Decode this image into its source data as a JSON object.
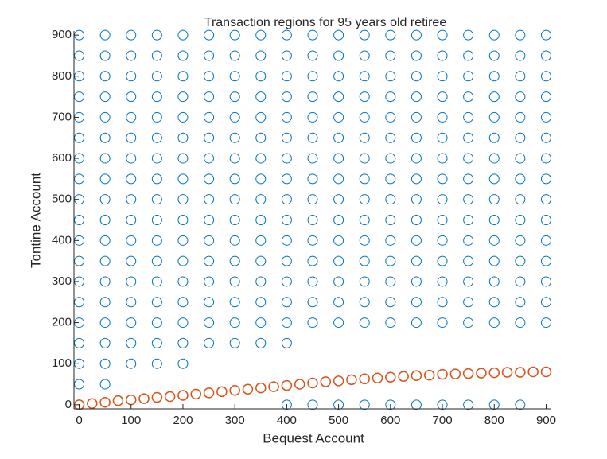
{
  "chart_data": {
    "type": "scatter",
    "title": "Transaction regions for 95 years old retiree",
    "xlabel": "Bequest Account",
    "ylabel": "Tontine Account",
    "xlim": [
      -10,
      910
    ],
    "ylim": [
      -10,
      910
    ],
    "xticks": [
      0,
      100,
      200,
      300,
      400,
      500,
      600,
      700,
      800,
      900
    ],
    "yticks": [
      0,
      100,
      200,
      300,
      400,
      500,
      600,
      700,
      800,
      900
    ],
    "series": [
      {
        "color": "#0072bd",
        "x": [
          0,
          50,
          100,
          150,
          200,
          250,
          300,
          350,
          400,
          450,
          500,
          550,
          600,
          650,
          700,
          750,
          800,
          850,
          900
        ],
        "y": [
          [
            50,
            100,
            150,
            200,
            250,
            300,
            350,
            400,
            450,
            500,
            550,
            600,
            650,
            700,
            750,
            800,
            850,
            900
          ],
          [
            50,
            100,
            150,
            200,
            250,
            300,
            350,
            400,
            450,
            500,
            550,
            600,
            650,
            700,
            750,
            800,
            850,
            900
          ],
          [
            100,
            150,
            200,
            250,
            300,
            350,
            400,
            450,
            500,
            550,
            600,
            650,
            700,
            750,
            800,
            850,
            900
          ],
          [
            100,
            150,
            200,
            250,
            300,
            350,
            400,
            450,
            500,
            550,
            600,
            650,
            700,
            750,
            800,
            850,
            900
          ],
          [
            100,
            150,
            200,
            250,
            300,
            350,
            400,
            450,
            500,
            550,
            600,
            650,
            700,
            750,
            800,
            850,
            900
          ],
          [
            150,
            200,
            250,
            300,
            350,
            400,
            450,
            500,
            550,
            600,
            650,
            700,
            750,
            800,
            850,
            900
          ],
          [
            150,
            200,
            250,
            300,
            350,
            400,
            450,
            500,
            550,
            600,
            650,
            700,
            750,
            800,
            850,
            900
          ],
          [
            150,
            200,
            250,
            300,
            350,
            400,
            450,
            500,
            550,
            600,
            650,
            700,
            750,
            800,
            850,
            900
          ],
          [
            0,
            150,
            200,
            250,
            300,
            350,
            400,
            450,
            500,
            550,
            600,
            650,
            700,
            750,
            800,
            850,
            900
          ],
          [
            0,
            200,
            250,
            300,
            350,
            400,
            450,
            500,
            550,
            600,
            650,
            700,
            750,
            800,
            850,
            900
          ],
          [
            0,
            200,
            250,
            300,
            350,
            400,
            450,
            500,
            550,
            600,
            650,
            700,
            750,
            800,
            850,
            900
          ],
          [
            0,
            200,
            250,
            300,
            350,
            400,
            450,
            500,
            550,
            600,
            650,
            700,
            750,
            800,
            850,
            900
          ],
          [
            0,
            200,
            250,
            300,
            350,
            400,
            450,
            500,
            550,
            600,
            650,
            700,
            750,
            800,
            850,
            900
          ],
          [
            0,
            200,
            250,
            300,
            350,
            400,
            450,
            500,
            550,
            600,
            650,
            700,
            750,
            800,
            850,
            900
          ],
          [
            0,
            200,
            250,
            300,
            350,
            400,
            450,
            500,
            550,
            600,
            650,
            700,
            750,
            800,
            850,
            900
          ],
          [
            0,
            200,
            250,
            300,
            350,
            400,
            450,
            500,
            550,
            600,
            650,
            700,
            750,
            800,
            850,
            900
          ],
          [
            0,
            200,
            250,
            300,
            350,
            400,
            450,
            500,
            550,
            600,
            650,
            700,
            750,
            800,
            850,
            900
          ],
          [
            0,
            200,
            250,
            300,
            350,
            400,
            450,
            500,
            550,
            600,
            650,
            700,
            750,
            800,
            850,
            900
          ],
          [
            200,
            250,
            300,
            350,
            400,
            450,
            500,
            550,
            600,
            650,
            700,
            750,
            800,
            850,
            900
          ]
        ]
      },
      {
        "color": "#d95319",
        "x": [
          0,
          25,
          50,
          75,
          100,
          125,
          150,
          175,
          200,
          225,
          250,
          275,
          300,
          325,
          350,
          375,
          400,
          425,
          450,
          475,
          500,
          525,
          550,
          575,
          600,
          625,
          650,
          675,
          700,
          725,
          750,
          775,
          800,
          825,
          850,
          875,
          900
        ],
        "y": [
          0,
          3,
          6,
          10,
          12,
          15,
          18,
          20,
          23,
          26,
          29,
          32,
          35,
          38,
          41,
          44,
          47,
          50,
          53,
          56,
          58,
          61,
          63,
          65,
          67,
          69,
          71,
          72,
          74,
          75,
          76,
          77,
          78,
          79,
          79,
          80,
          80
        ]
      }
    ]
  }
}
